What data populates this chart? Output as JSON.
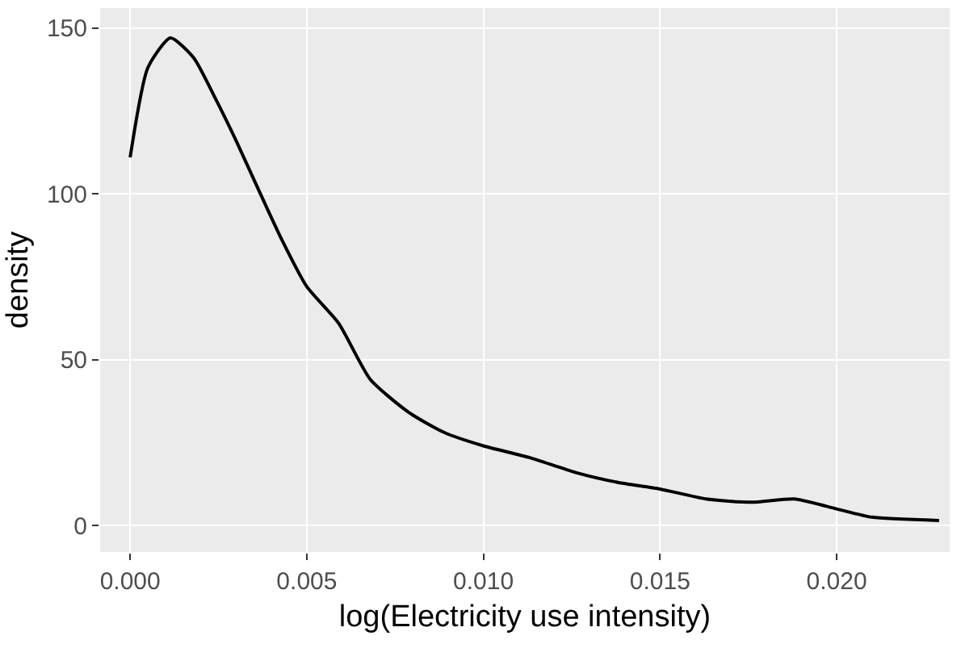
{
  "chart_data": {
    "type": "line",
    "xlabel": "log(Electricity use intensity)",
    "ylabel": "density",
    "x": [
      0,
      0.0005,
      0.00114,
      0.0018,
      0.0024,
      0.003,
      0.0036,
      0.0043,
      0.005,
      0.0059,
      0.0068,
      0.0079,
      0.0089,
      0.01,
      0.0113,
      0.0126,
      0.0138,
      0.015,
      0.0163,
      0.0176,
      0.0188,
      0.02,
      0.021,
      0.0229
    ],
    "series": [
      {
        "color": "#000000",
        "values": [
          111,
          138,
          147,
          141,
          129,
          116,
          102,
          86,
          72,
          61,
          44,
          34,
          28,
          24,
          20.5,
          16,
          13,
          11,
          8,
          7,
          8,
          5,
          2.5,
          1.5
        ]
      }
    ],
    "xlim": [
      -0.00085,
      0.0232
    ],
    "ylim": [
      -8,
      156
    ],
    "xticks": [
      {
        "value": 0,
        "label": "0.000"
      },
      {
        "value": 0.005,
        "label": "0.005"
      },
      {
        "value": 0.01,
        "label": "0.010"
      },
      {
        "value": 0.015,
        "label": "0.015"
      },
      {
        "value": 0.02,
        "label": "0.020"
      }
    ],
    "yticks": [
      0,
      50,
      100,
      150
    ],
    "grid": true,
    "marker": "none",
    "line_style": "solid"
  }
}
